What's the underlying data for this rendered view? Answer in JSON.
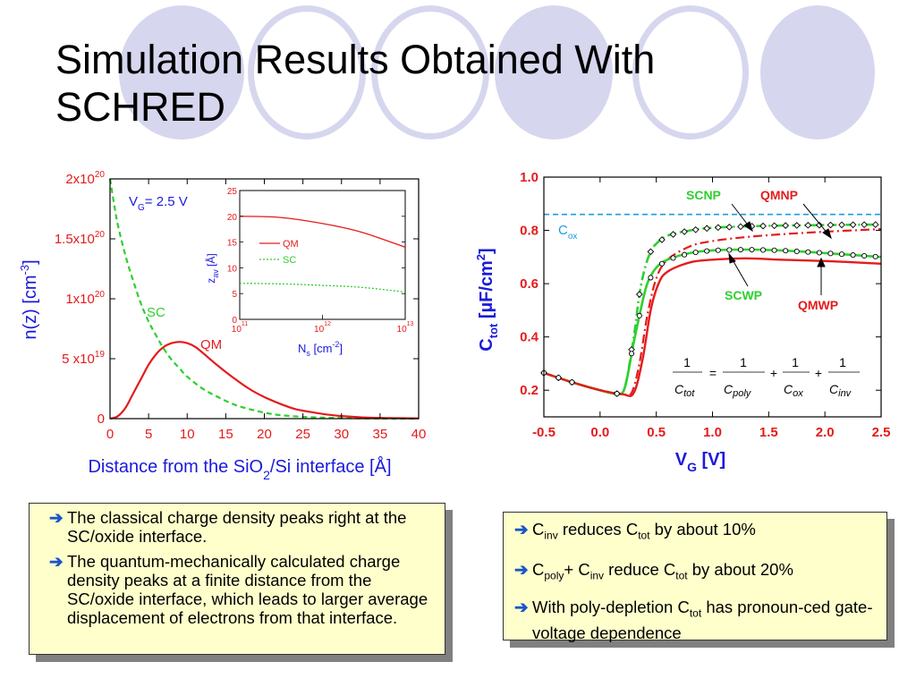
{
  "slide": {
    "title_line1": "Simulation Results Obtained With",
    "title_line2": "SCHRED"
  },
  "colors": {
    "quantum": "#e41b1b",
    "classical": "#2fcf2f",
    "axis_blue": "#1a1adc",
    "cox_line": "#1a9ee0",
    "decoration": "#d6d6ef",
    "box_fill": "#ffffcc",
    "arrow": "#1a56c9"
  },
  "left_panel": {
    "y_ticks": [
      {
        "base": "0",
        "exp": ""
      },
      {
        "base": "5 x10",
        "exp": "19"
      },
      {
        "base": "1x10",
        "exp": "20"
      },
      {
        "base": "1.5x10",
        "exp": "20"
      },
      {
        "base": "2x10",
        "exp": "20"
      }
    ],
    "x_ticks": [
      "0",
      "5",
      "10",
      "15",
      "20",
      "25",
      "30",
      "35",
      "40"
    ],
    "ylabel": {
      "main": "n(z)  [cm",
      "sup": "-3",
      "end": "]"
    },
    "xlabel": {
      "main": "Distance from the SiO",
      "sub": "2",
      "end": "/Si interface  [Å]"
    },
    "vg": {
      "v": "V",
      "sub": "G",
      "rest": "= 2.5  V"
    },
    "label_sc": "SC",
    "label_qm": "QM",
    "inset": {
      "y_ticks": [
        "0",
        "5",
        "10",
        "15",
        "20",
        "25"
      ],
      "x_ticks": [
        {
          "base": "10",
          "exp": "11"
        },
        {
          "base": "10",
          "exp": "12"
        },
        {
          "base": "10",
          "exp": "13"
        }
      ],
      "ylabel": {
        "main": "z",
        "sub": "av",
        "end": "  [Å]"
      },
      "xlabel": {
        "main": "N",
        "sub": "s",
        "rest": "  [cm",
        "sup": "-2",
        "end": "]"
      },
      "legend": [
        "QM",
        "SC"
      ]
    }
  },
  "right_panel": {
    "y_ticks": [
      "0.2",
      "0.4",
      "0.6",
      "0.8",
      "1.0"
    ],
    "x_ticks": [
      "-0.5",
      "0.0",
      "0.5",
      "1.0",
      "1.5",
      "2.0",
      "2.5"
    ],
    "ylabel": {
      "main": "C",
      "sub": "tot",
      "rest": " [µF/cm",
      "sup": "2",
      "end": "]"
    },
    "xlabel": {
      "main": "V",
      "sub": "G",
      "end": "  [V]"
    },
    "cox": {
      "main": "C",
      "sub": "ox"
    },
    "labels": {
      "scnp": "SCNP",
      "qmnp": "QMNP",
      "scwp": "SCWP",
      "qmwp": "QMWP"
    },
    "formula": {
      "one": "1",
      "c": "C",
      "tot": "tot",
      "poly": "poly",
      "ox": "ox",
      "inv": "inv",
      "eq": "=",
      "plus": "+"
    }
  },
  "chart_data": [
    {
      "type": "line",
      "xlabel": "Distance from the SiO2/Si interface  [Å]",
      "ylabel": "n(z)  [cm-3]",
      "xlim": [
        0,
        40
      ],
      "ylim": [
        0,
        2e+20
      ],
      "annotation": "VG= 2.5  V",
      "series": [
        {
          "name": "SC",
          "x": [
            0,
            0.5,
            1,
            2,
            3,
            4,
            5,
            6,
            7,
            8,
            9,
            10,
            12,
            14,
            16,
            18,
            20,
            22,
            25,
            28,
            30,
            35,
            40
          ],
          "y": [
            2e+20,
            1.8e+20,
            1.62e+20,
            1.36e+20,
            1.15e+20,
            9.6e+19,
            8.1e+19,
            6.9e+19,
            5.8e+19,
            4.9e+19,
            4.2e+19,
            3.5e+19,
            2.5e+19,
            1.8e+19,
            1.2e+19,
            8e+18,
            5e+18,
            3e+18,
            1.5e+18,
            8e+17,
            5e+17,
            1e+17,
            0
          ]
        },
        {
          "name": "QM",
          "x": [
            0,
            1,
            2,
            3,
            4,
            5,
            6,
            7,
            8,
            9,
            10,
            11,
            12,
            14,
            16,
            18,
            20,
            22,
            24,
            26,
            28,
            30,
            33,
            36,
            40
          ],
          "y": [
            0,
            2e+18,
            9e+18,
            2.1e+19,
            3.3e+19,
            4.5e+19,
            5.4e+19,
            6e+19,
            6.3e+19,
            6.4e+19,
            6.3e+19,
            6e+19,
            5.5e+19,
            4.4e+19,
            3.4e+19,
            2.5e+19,
            1.8e+19,
            1.25e+19,
            8e+18,
            5.5e+18,
            3.5e+18,
            2.2e+18,
            1e+18,
            5e+17,
            2e+17
          ]
        }
      ]
    },
    {
      "type": "line",
      "xlabel": "Ns  [cm-2]",
      "ylabel": "zav  [Å]",
      "xscale": "log",
      "xlim": [
        100000000000.0,
        10000000000000.0
      ],
      "ylim": [
        0,
        25
      ],
      "legend": "top-right",
      "series": [
        {
          "name": "QM",
          "x": [
            100000000000.0,
            300000000000.0,
            1000000000000.0,
            3000000000000.0,
            10000000000000.0
          ],
          "y": [
            20,
            19.8,
            18.6,
            16.9,
            14
          ]
        },
        {
          "name": "SC",
          "x": [
            100000000000.0,
            300000000000.0,
            1000000000000.0,
            3000000000000.0,
            10000000000000.0
          ],
          "y": [
            7,
            6.9,
            6.6,
            6.2,
            5.3
          ]
        }
      ]
    },
    {
      "type": "line",
      "xlabel": "VG  [V]",
      "ylabel": "Ctot [µF/cm2]",
      "xlim": [
        -0.5,
        2.5
      ],
      "ylim": [
        0.1,
        1.0
      ],
      "annotation": "Cox",
      "series": [
        {
          "name": "SCNP",
          "x": [
            -0.5,
            -0.25,
            0,
            0.15,
            0.22,
            0.3,
            0.35,
            0.4,
            0.45,
            0.5,
            0.6,
            0.8,
            1,
            1.3,
            1.6,
            2,
            2.5
          ],
          "y": [
            0.265,
            0.23,
            0.2,
            0.187,
            0.21,
            0.4,
            0.56,
            0.66,
            0.72,
            0.75,
            0.78,
            0.8,
            0.81,
            0.815,
            0.818,
            0.82,
            0.822
          ]
        },
        {
          "name": "QMNP",
          "x": [
            -0.5,
            -0.25,
            0,
            0.2,
            0.28,
            0.35,
            0.42,
            0.5,
            0.6,
            0.8,
            1,
            1.3,
            1.6,
            2,
            2.5
          ],
          "y": [
            0.265,
            0.23,
            0.2,
            0.185,
            0.19,
            0.3,
            0.48,
            0.62,
            0.69,
            0.74,
            0.76,
            0.775,
            0.785,
            0.795,
            0.805
          ]
        },
        {
          "name": "SCWP",
          "x": [
            -0.5,
            -0.25,
            0,
            0.15,
            0.22,
            0.3,
            0.36,
            0.42,
            0.5,
            0.6,
            0.8,
            1,
            1.3,
            1.6,
            2,
            2.5
          ],
          "y": [
            0.265,
            0.23,
            0.2,
            0.187,
            0.21,
            0.38,
            0.5,
            0.6,
            0.66,
            0.69,
            0.715,
            0.725,
            0.728,
            0.725,
            0.715,
            0.7
          ]
        },
        {
          "name": "QMWP",
          "x": [
            -0.5,
            -0.25,
            0,
            0.2,
            0.3,
            0.38,
            0.45,
            0.52,
            0.6,
            0.8,
            1,
            1.3,
            1.6,
            2,
            2.5
          ],
          "y": [
            0.265,
            0.23,
            0.2,
            0.185,
            0.19,
            0.32,
            0.5,
            0.6,
            0.645,
            0.68,
            0.69,
            0.695,
            0.69,
            0.685,
            0.675
          ]
        }
      ],
      "reference_line": {
        "name": "Cox",
        "y": 0.86
      }
    }
  ],
  "notes_left": [
    "The classical charge density peaks right at the SC/oxide interface.",
    "The quantum-mechanically calculated charge density peaks at a finite distance from the SC/oxide interface, which leads to larger average displacement of electrons from that interface."
  ],
  "notes_right": [
    {
      "a": "C",
      "as": "inv",
      "b": " reduces C",
      "bs": "tot",
      "c": " by about 10%"
    },
    {
      "a": "C",
      "as": "poly",
      "b": "+ C",
      "bs": "inv",
      "c": " reduce C",
      "cs": "tot",
      "d": " by about 20%"
    },
    {
      "a": "With poly-depletion C",
      "as": "tot",
      "b": " has pronoun-ced gate-voltage dependence"
    }
  ]
}
